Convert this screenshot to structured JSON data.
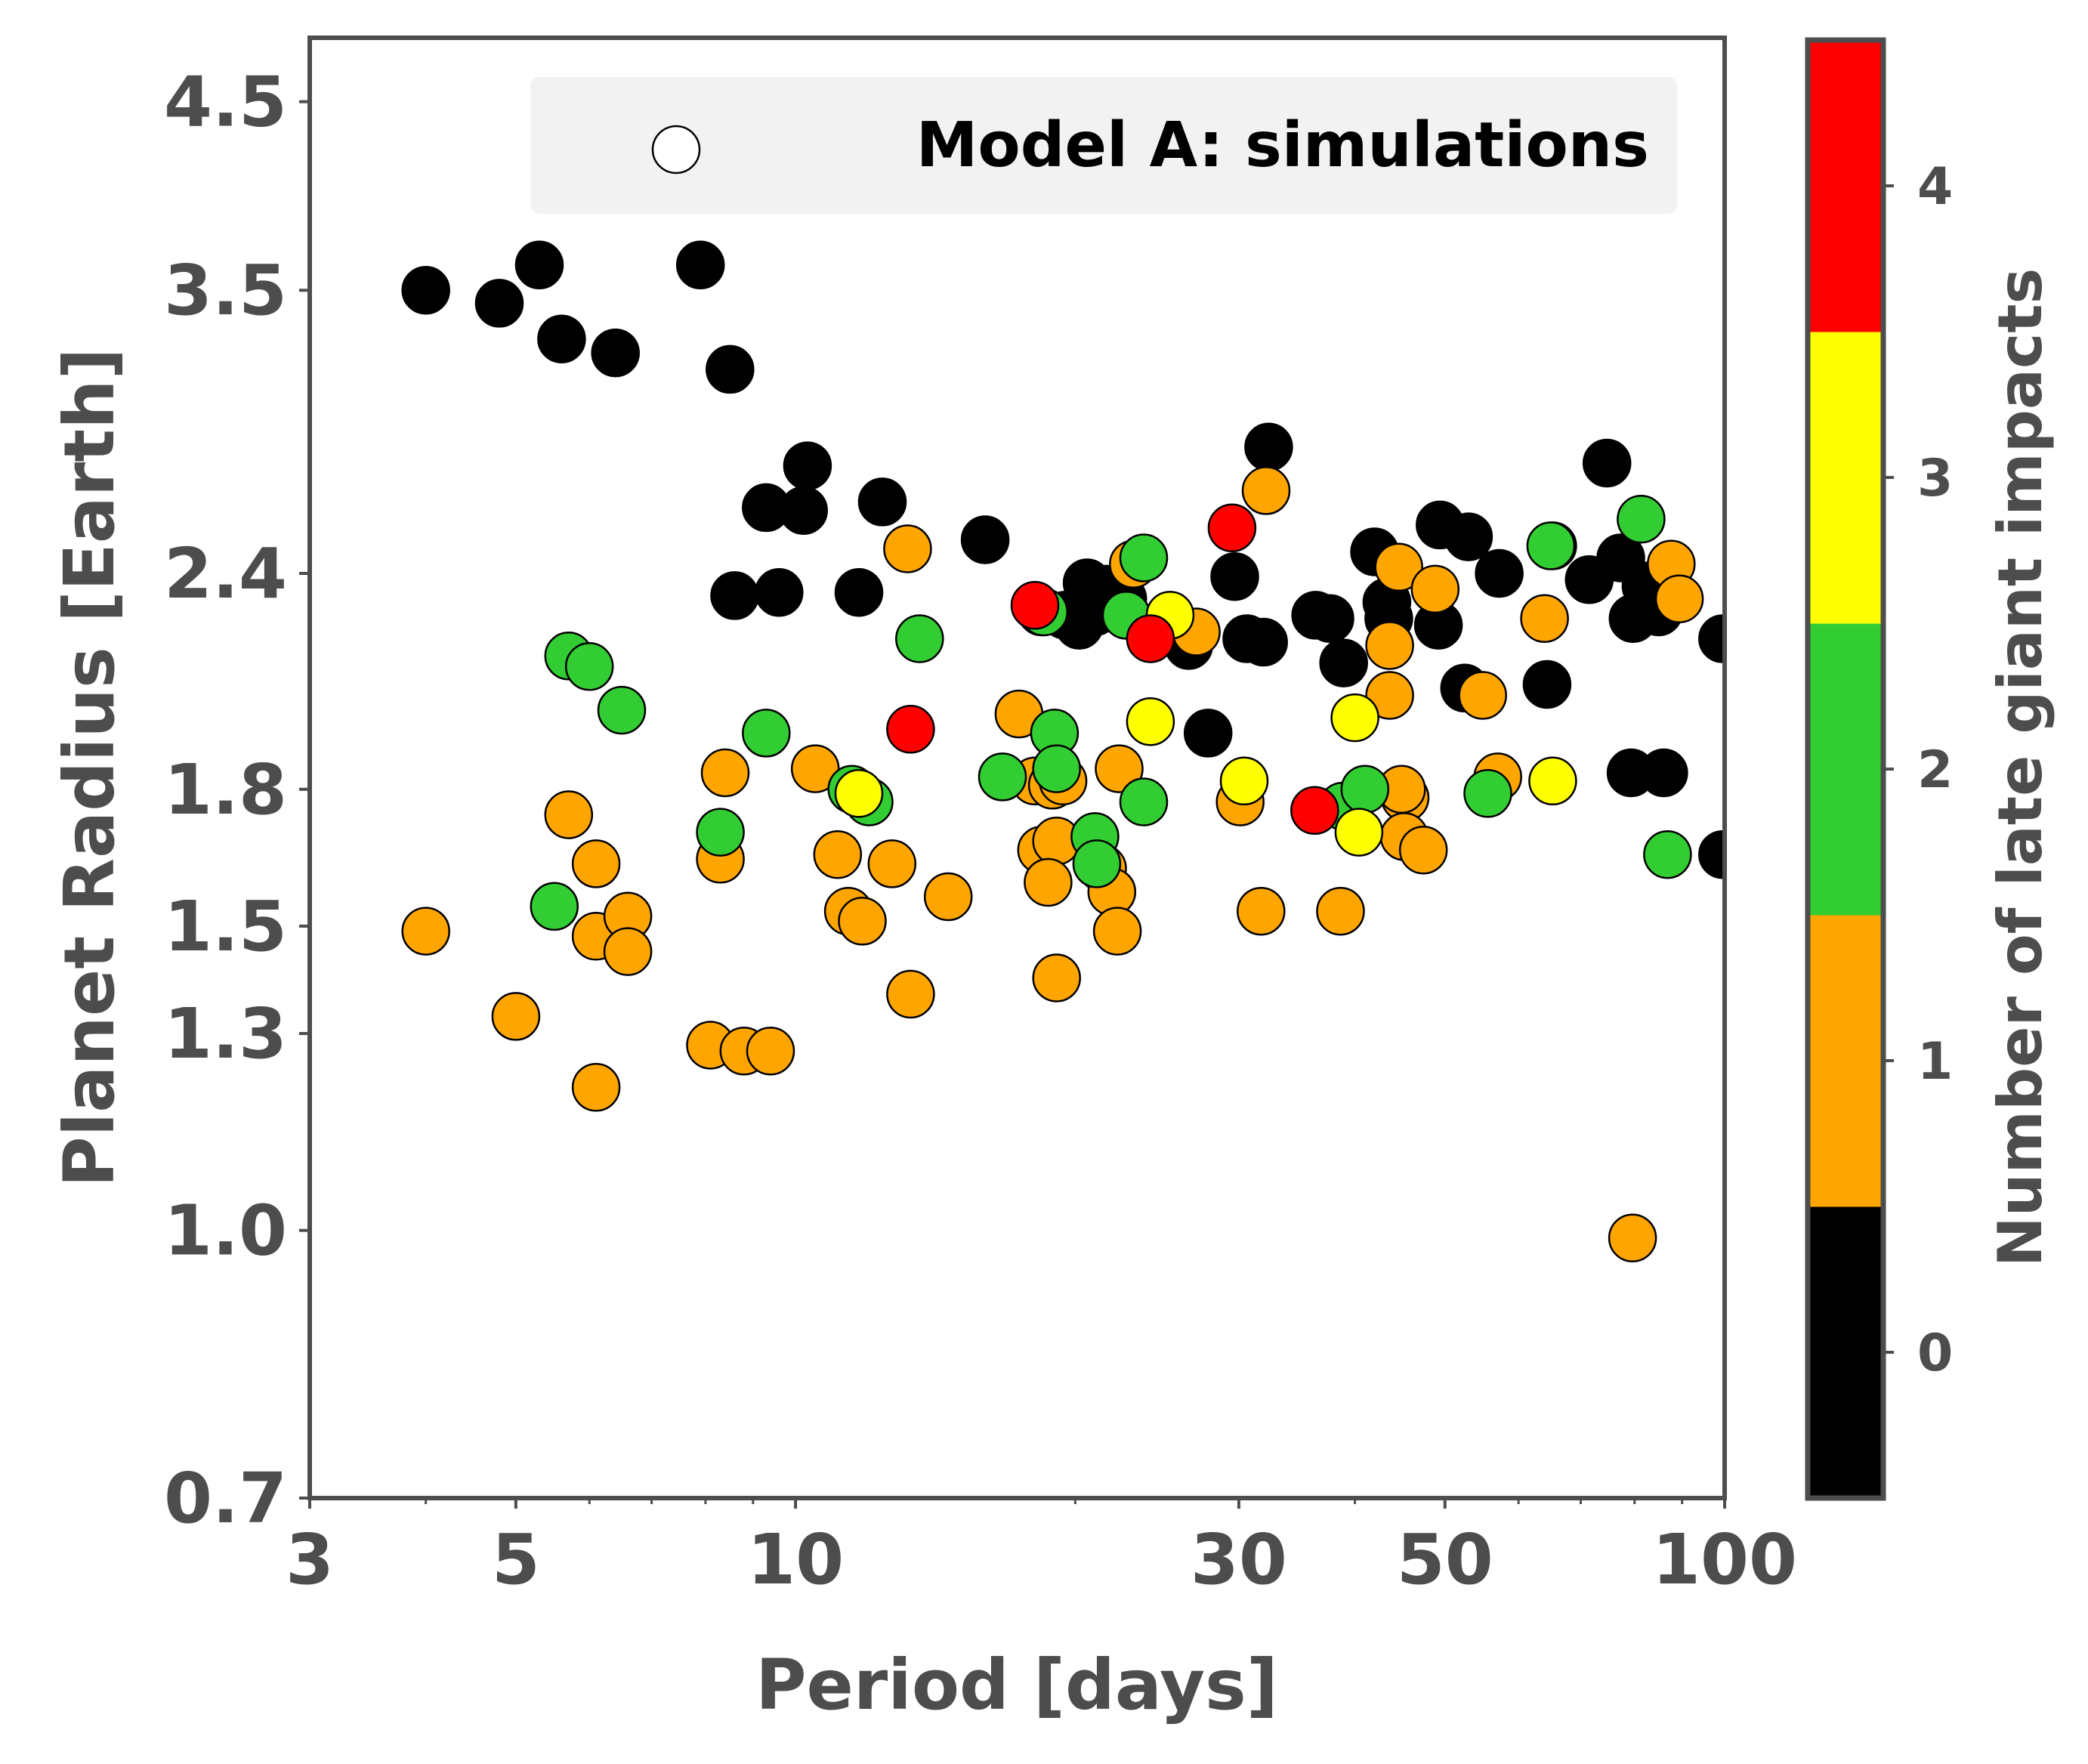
{
  "chart_data": {
    "type": "scatter",
    "xlabel": "Period [days]",
    "ylabel": "Planet Radius [Earth]",
    "x_scale": "log",
    "y_scale": "log",
    "xlim": [
      3,
      100
    ],
    "ylim": [
      0.7,
      4.9
    ],
    "x_ticks": [
      3,
      5,
      10,
      30,
      50,
      100
    ],
    "x_tick_labels": [
      "3",
      "5",
      "10",
      "30",
      "50",
      "100"
    ],
    "y_ticks": [
      0.7,
      1.0,
      1.3,
      1.5,
      1.8,
      2.4,
      3.5,
      4.5
    ],
    "y_tick_labels": [
      "0.7",
      "1.0",
      "1.3",
      "1.5",
      "1.8",
      "2.4",
      "3.5",
      "4.5"
    ],
    "grid": false,
    "legend": {
      "position": "top-right",
      "entries": [
        "Model A: simulations"
      ]
    },
    "colorbar": {
      "label": "Number of late giant impacts",
      "ticks": [
        "0",
        "1",
        "2",
        "3",
        "4"
      ],
      "colors": [
        "#000000",
        "#FFA500",
        "#32CD32",
        "#FFFF00",
        "#FF0000"
      ]
    },
    "points": [
      {
        "x": 4.0,
        "y": 3.5,
        "c": 0
      },
      {
        "x": 4.8,
        "y": 3.44,
        "c": 0
      },
      {
        "x": 5.3,
        "y": 3.62,
        "c": 0
      },
      {
        "x": 5.6,
        "y": 3.28,
        "c": 0
      },
      {
        "x": 6.4,
        "y": 3.22,
        "c": 0
      },
      {
        "x": 7.9,
        "y": 3.62,
        "c": 0
      },
      {
        "x": 8.5,
        "y": 3.15,
        "c": 0
      },
      {
        "x": 9.3,
        "y": 2.62,
        "c": 0
      },
      {
        "x": 10.2,
        "y": 2.61,
        "c": 0
      },
      {
        "x": 10.3,
        "y": 2.77,
        "c": 0
      },
      {
        "x": 12.4,
        "y": 2.64,
        "c": 0
      },
      {
        "x": 16.0,
        "y": 2.51,
        "c": 0
      },
      {
        "x": 8.6,
        "y": 2.33,
        "c": 0
      },
      {
        "x": 9.6,
        "y": 2.34,
        "c": 0
      },
      {
        "x": 11.7,
        "y": 2.34,
        "c": 0
      },
      {
        "x": 20.6,
        "y": 2.37,
        "c": 0
      },
      {
        "x": 19.5,
        "y": 2.27,
        "c": 0
      },
      {
        "x": 20.2,
        "y": 2.24,
        "c": 0
      },
      {
        "x": 21.0,
        "y": 2.28,
        "c": 0
      },
      {
        "x": 22.5,
        "y": 2.32,
        "c": 0
      },
      {
        "x": 18.4,
        "y": 2.28,
        "c": 0
      },
      {
        "x": 21.6,
        "y": 2.35,
        "c": 0
      },
      {
        "x": 26.5,
        "y": 2.18,
        "c": 0
      },
      {
        "x": 27.8,
        "y": 1.94,
        "c": 0
      },
      {
        "x": 29.7,
        "y": 2.39,
        "c": 0
      },
      {
        "x": 32.3,
        "y": 2.84,
        "c": 0
      },
      {
        "x": 30.6,
        "y": 2.2,
        "c": 0
      },
      {
        "x": 31.9,
        "y": 2.19,
        "c": 0
      },
      {
        "x": 36.3,
        "y": 2.27,
        "c": 0
      },
      {
        "x": 37.6,
        "y": 2.26,
        "c": 0
      },
      {
        "x": 38.9,
        "y": 2.13,
        "c": 0
      },
      {
        "x": 42.0,
        "y": 2.47,
        "c": 0
      },
      {
        "x": 43.3,
        "y": 2.31,
        "c": 0
      },
      {
        "x": 43.5,
        "y": 2.26,
        "c": 0
      },
      {
        "x": 49.4,
        "y": 2.56,
        "c": 0
      },
      {
        "x": 49.2,
        "y": 2.24,
        "c": 0
      },
      {
        "x": 53.0,
        "y": 2.52,
        "c": 0
      },
      {
        "x": 57.2,
        "y": 2.4,
        "c": 0
      },
      {
        "x": 52.5,
        "y": 2.06,
        "c": 0
      },
      {
        "x": 65.3,
        "y": 2.49,
        "c": 0
      },
      {
        "x": 64.4,
        "y": 2.07,
        "c": 0
      },
      {
        "x": 71.5,
        "y": 2.38,
        "c": 0
      },
      {
        "x": 74.7,
        "y": 2.78,
        "c": 0
      },
      {
        "x": 77.3,
        "y": 2.45,
        "c": 0
      },
      {
        "x": 79.7,
        "y": 2.26,
        "c": 0
      },
      {
        "x": 79.3,
        "y": 1.84,
        "c": 0
      },
      {
        "x": 82.3,
        "y": 2.36,
        "c": 0
      },
      {
        "x": 86.0,
        "y": 1.84,
        "c": 0
      },
      {
        "x": 84.9,
        "y": 2.28,
        "c": 0
      },
      {
        "x": 99.5,
        "y": 2.2,
        "c": 0
      },
      {
        "x": 99.5,
        "y": 1.65,
        "c": 0
      },
      {
        "x": 4.0,
        "y": 1.49,
        "c": 1
      },
      {
        "x": 5.0,
        "y": 1.33,
        "c": 1
      },
      {
        "x": 5.7,
        "y": 1.74,
        "c": 1
      },
      {
        "x": 6.1,
        "y": 1.63,
        "c": 1
      },
      {
        "x": 6.1,
        "y": 1.48,
        "c": 1
      },
      {
        "x": 6.6,
        "y": 1.52,
        "c": 1
      },
      {
        "x": 6.6,
        "y": 1.45,
        "c": 1
      },
      {
        "x": 6.1,
        "y": 1.21,
        "c": 1
      },
      {
        "x": 8.1,
        "y": 1.28,
        "c": 1
      },
      {
        "x": 8.8,
        "y": 1.27,
        "c": 1
      },
      {
        "x": 9.4,
        "y": 1.27,
        "c": 1
      },
      {
        "x": 8.4,
        "y": 1.84,
        "c": 1
      },
      {
        "x": 8.3,
        "y": 1.64,
        "c": 1
      },
      {
        "x": 10.5,
        "y": 1.85,
        "c": 1
      },
      {
        "x": 11.1,
        "y": 1.65,
        "c": 1
      },
      {
        "x": 11.4,
        "y": 1.53,
        "c": 1
      },
      {
        "x": 11.8,
        "y": 1.51,
        "c": 1
      },
      {
        "x": 12.7,
        "y": 1.63,
        "c": 1
      },
      {
        "x": 13.2,
        "y": 2.48,
        "c": 1
      },
      {
        "x": 13.3,
        "y": 1.37,
        "c": 1
      },
      {
        "x": 14.6,
        "y": 1.56,
        "c": 1
      },
      {
        "x": 17.4,
        "y": 1.99,
        "c": 1
      },
      {
        "x": 18.1,
        "y": 1.82,
        "c": 1
      },
      {
        "x": 18.9,
        "y": 1.81,
        "c": 1
      },
      {
        "x": 19.4,
        "y": 1.82,
        "c": 1
      },
      {
        "x": 18.4,
        "y": 1.66,
        "c": 1
      },
      {
        "x": 19.1,
        "y": 1.68,
        "c": 1
      },
      {
        "x": 18.7,
        "y": 1.59,
        "c": 1
      },
      {
        "x": 19.1,
        "y": 1.4,
        "c": 1
      },
      {
        "x": 21.4,
        "y": 1.62,
        "c": 1
      },
      {
        "x": 21.9,
        "y": 1.57,
        "c": 1
      },
      {
        "x": 22.2,
        "y": 1.49,
        "c": 1
      },
      {
        "x": 22.3,
        "y": 1.85,
        "c": 1
      },
      {
        "x": 23.1,
        "y": 2.43,
        "c": 1
      },
      {
        "x": 27.0,
        "y": 2.22,
        "c": 1
      },
      {
        "x": 30.1,
        "y": 1.77,
        "c": 1
      },
      {
        "x": 31.7,
        "y": 1.53,
        "c": 1
      },
      {
        "x": 32.1,
        "y": 2.68,
        "c": 1
      },
      {
        "x": 38.6,
        "y": 1.53,
        "c": 1
      },
      {
        "x": 43.6,
        "y": 2.18,
        "c": 1
      },
      {
        "x": 43.6,
        "y": 2.04,
        "c": 1
      },
      {
        "x": 44.6,
        "y": 2.42,
        "c": 1
      },
      {
        "x": 45.3,
        "y": 1.78,
        "c": 1
      },
      {
        "x": 44.9,
        "y": 1.8,
        "c": 1
      },
      {
        "x": 45.2,
        "y": 1.69,
        "c": 1
      },
      {
        "x": 47.4,
        "y": 1.66,
        "c": 1
      },
      {
        "x": 48.8,
        "y": 2.35,
        "c": 1
      },
      {
        "x": 54.9,
        "y": 2.04,
        "c": 1
      },
      {
        "x": 57.0,
        "y": 1.83,
        "c": 1
      },
      {
        "x": 64.0,
        "y": 2.26,
        "c": 1
      },
      {
        "x": 79.6,
        "y": 0.99,
        "c": 1
      },
      {
        "x": 87.6,
        "y": 2.43,
        "c": 1
      },
      {
        "x": 89.4,
        "y": 2.32,
        "c": 1
      },
      {
        "x": 5.5,
        "y": 1.54,
        "c": 2
      },
      {
        "x": 5.7,
        "y": 2.15,
        "c": 2
      },
      {
        "x": 6.0,
        "y": 2.12,
        "c": 2
      },
      {
        "x": 6.5,
        "y": 2.0,
        "c": 2
      },
      {
        "x": 8.3,
        "y": 1.7,
        "c": 2
      },
      {
        "x": 9.3,
        "y": 1.94,
        "c": 2
      },
      {
        "x": 11.5,
        "y": 1.8,
        "c": 2
      },
      {
        "x": 12.0,
        "y": 1.77,
        "c": 2
      },
      {
        "x": 13.6,
        "y": 2.2,
        "c": 2
      },
      {
        "x": 16.7,
        "y": 1.83,
        "c": 2
      },
      {
        "x": 18.5,
        "y": 2.28,
        "c": 2
      },
      {
        "x": 19.0,
        "y": 1.94,
        "c": 2
      },
      {
        "x": 19.1,
        "y": 1.85,
        "c": 2
      },
      {
        "x": 21.0,
        "y": 1.69,
        "c": 2
      },
      {
        "x": 21.1,
        "y": 1.63,
        "c": 2
      },
      {
        "x": 22.7,
        "y": 2.27,
        "c": 2
      },
      {
        "x": 23.7,
        "y": 2.45,
        "c": 2
      },
      {
        "x": 23.7,
        "y": 1.77,
        "c": 2
      },
      {
        "x": 38.8,
        "y": 1.76,
        "c": 2
      },
      {
        "x": 41.0,
        "y": 1.8,
        "c": 2
      },
      {
        "x": 55.6,
        "y": 1.79,
        "c": 2
      },
      {
        "x": 65.0,
        "y": 2.49,
        "c": 2
      },
      {
        "x": 81.3,
        "y": 2.58,
        "c": 2
      },
      {
        "x": 86.8,
        "y": 1.65,
        "c": 2
      },
      {
        "x": 11.7,
        "y": 1.79,
        "c": 3
      },
      {
        "x": 24.1,
        "y": 1.97,
        "c": 3
      },
      {
        "x": 25.3,
        "y": 2.27,
        "c": 3
      },
      {
        "x": 30.4,
        "y": 1.82,
        "c": 3
      },
      {
        "x": 40.0,
        "y": 1.98,
        "c": 3
      },
      {
        "x": 40.4,
        "y": 1.7,
        "c": 3
      },
      {
        "x": 65.3,
        "y": 1.82,
        "c": 3
      },
      {
        "x": 13.3,
        "y": 1.95,
        "c": 4
      },
      {
        "x": 18.1,
        "y": 2.3,
        "c": 4
      },
      {
        "x": 24.1,
        "y": 2.2,
        "c": 4
      },
      {
        "x": 29.5,
        "y": 2.55,
        "c": 4
      },
      {
        "x": 36.2,
        "y": 1.75,
        "c": 4
      }
    ]
  }
}
